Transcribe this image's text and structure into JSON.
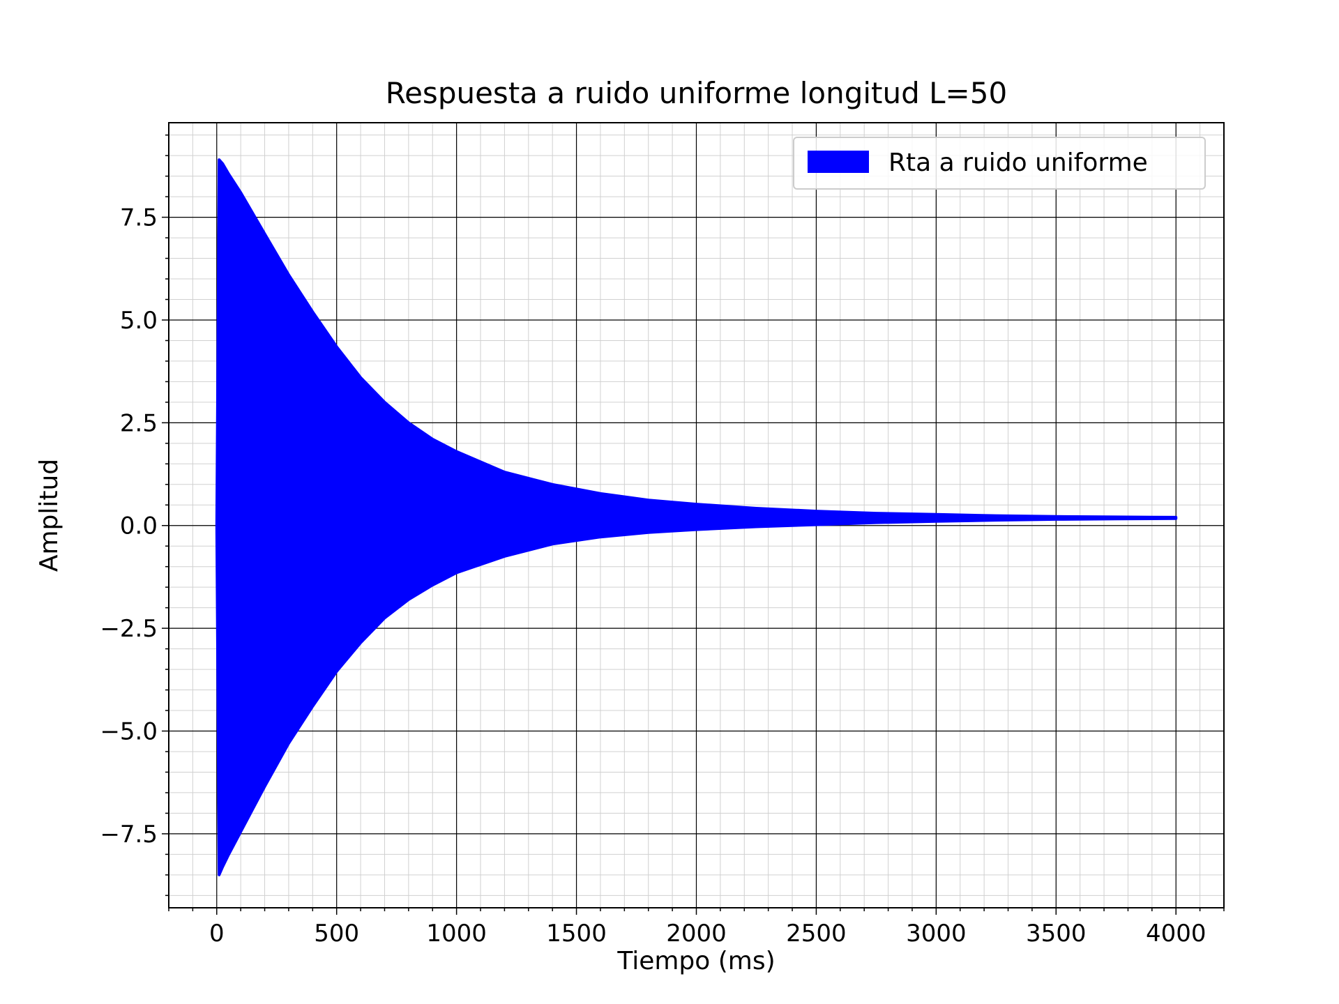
{
  "chart_data": {
    "type": "area",
    "title": "Respuesta a ruido uniforme longitud L=50",
    "xlabel": "Tiempo (ms)",
    "ylabel": "Amplitud",
    "xlim": [
      -200,
      4200
    ],
    "ylim": [
      -9.3,
      9.8
    ],
    "xticks": [
      0,
      500,
      1000,
      1500,
      2000,
      2500,
      3000,
      3500,
      4000
    ],
    "xtick_labels": [
      "0",
      "500",
      "1000",
      "1500",
      "2000",
      "2500",
      "3000",
      "3500",
      "4000"
    ],
    "yticks": [
      7.5,
      5.0,
      2.5,
      0.0,
      -2.5,
      -5.0,
      -7.5
    ],
    "ytick_labels": [
      "7.5",
      "5.0",
      "2.5",
      "0.0",
      "−2.5",
      "−5.0",
      "−7.5"
    ],
    "grid": "major and minor",
    "legend_position": "top-right",
    "series": [
      {
        "name": "Rta a ruido uniforme",
        "color": "#0000ff",
        "x": [
          0,
          10,
          25,
          50,
          100,
          200,
          300,
          400,
          500,
          600,
          700,
          800,
          900,
          1000,
          1200,
          1400,
          1600,
          1800,
          2000,
          2250,
          2500,
          2750,
          3000,
          3250,
          3500,
          3750,
          4000
        ],
        "upper": [
          0.0,
          8.9,
          8.8,
          8.55,
          8.1,
          7.1,
          6.1,
          5.2,
          4.35,
          3.6,
          3.0,
          2.5,
          2.1,
          1.8,
          1.3,
          1.0,
          0.78,
          0.62,
          0.52,
          0.42,
          0.35,
          0.3,
          0.27,
          0.24,
          0.22,
          0.21,
          0.2
        ],
        "lower": [
          0.0,
          -8.5,
          -8.3,
          -8.0,
          -7.45,
          -6.35,
          -5.3,
          -4.4,
          -3.55,
          -2.85,
          -2.25,
          -1.8,
          -1.45,
          -1.15,
          -0.75,
          -0.45,
          -0.28,
          -0.17,
          -0.1,
          -0.03,
          0.02,
          0.07,
          0.1,
          0.13,
          0.15,
          0.16,
          0.17
        ]
      }
    ]
  }
}
